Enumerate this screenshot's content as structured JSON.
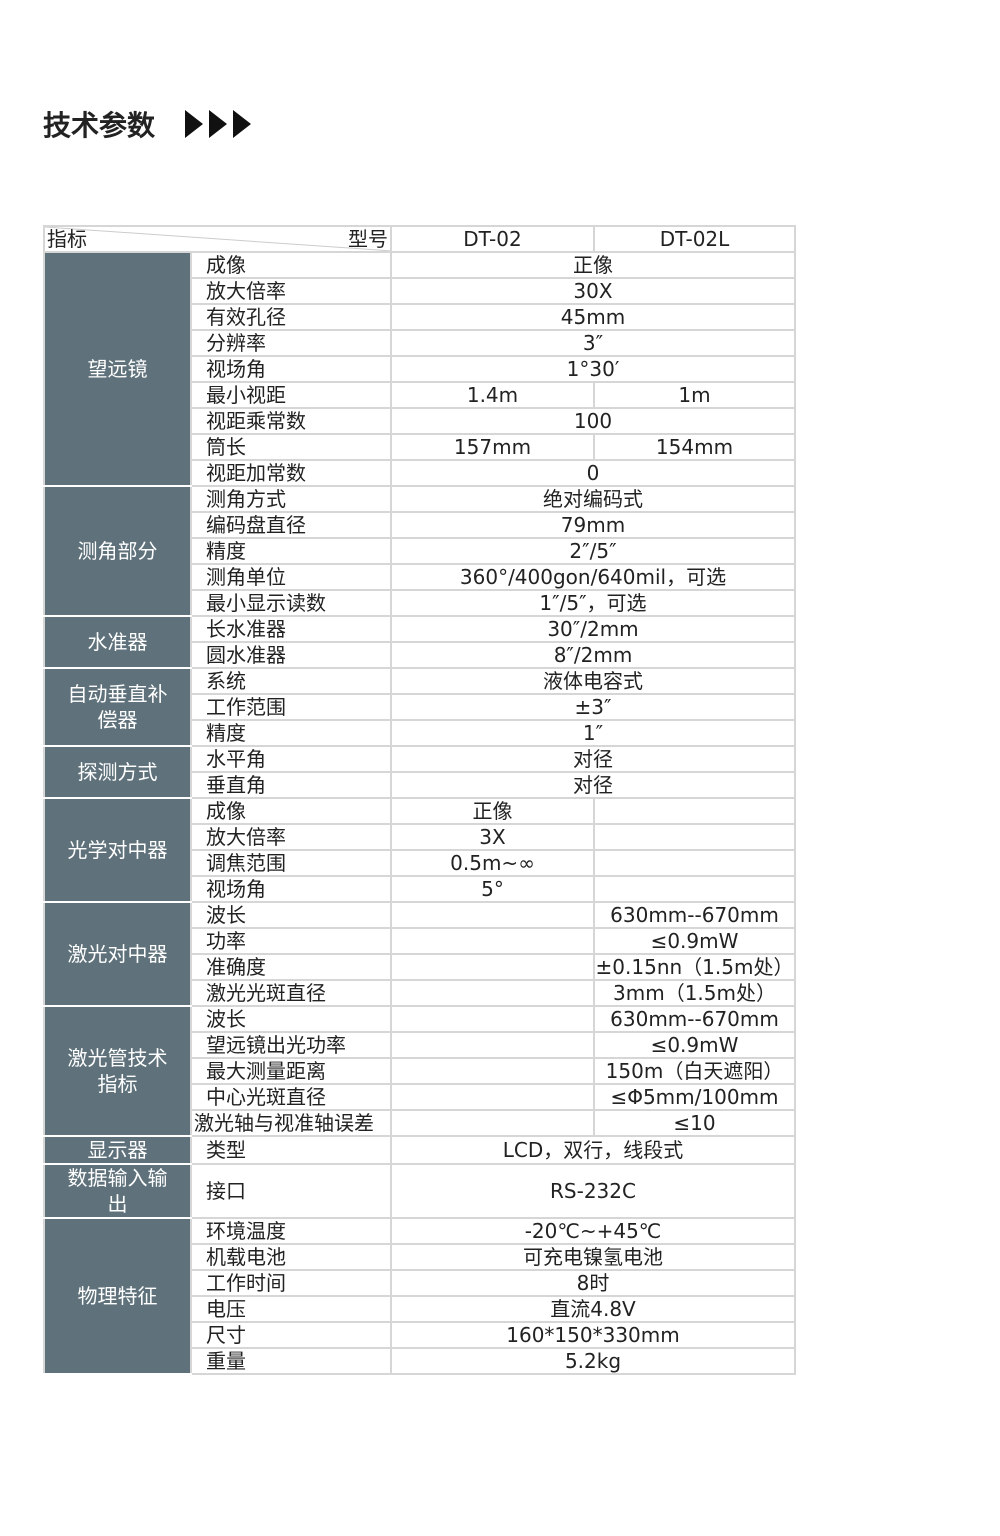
{
  "title": "技术参数",
  "header": {
    "indicator": "指标",
    "model": "型号",
    "models": [
      "DT-02",
      "DT-02L"
    ]
  },
  "colors": {
    "category_bg": "#5f727b",
    "border": "#d6d6d6"
  },
  "groups": [
    {
      "name": "望远镜",
      "rows": [
        [
          "成像",
          "正像"
        ],
        [
          "放大倍率",
          "30X"
        ],
        [
          "有效孔径",
          "45mm"
        ],
        [
          "分辨率",
          "3″"
        ],
        [
          "视场角",
          "1°30′"
        ],
        [
          "最小视距",
          "1.4m",
          "1m"
        ],
        [
          "视距乘常数",
          "100"
        ],
        [
          "筒长",
          "157mm",
          "154mm"
        ],
        [
          "视距加常数",
          "0"
        ]
      ]
    },
    {
      "name": "测角部分",
      "rows": [
        [
          "测角方式",
          "绝对编码式"
        ],
        [
          "编码盘直径",
          "79mm"
        ],
        [
          "精度",
          "2″/5″"
        ],
        [
          "测角单位",
          "360°/400gon/640mil，可选"
        ],
        [
          "最小显示读数",
          "1″/5″，可选"
        ]
      ]
    },
    {
      "name": "水准器",
      "rows": [
        [
          "长水准器",
          "30″/2mm"
        ],
        [
          "圆水准器",
          "8″/2mm"
        ]
      ]
    },
    {
      "name": "自动垂直补偿器",
      "rows": [
        [
          "系统",
          "液体电容式"
        ],
        [
          "工作范围",
          "±3″"
        ],
        [
          "精度",
          "1″"
        ]
      ]
    },
    {
      "name": "探测方式",
      "rows": [
        [
          "水平角",
          "对径"
        ],
        [
          "垂直角",
          "对径"
        ]
      ]
    },
    {
      "name": "光学对中器",
      "rows": [
        [
          "成像",
          "正像",
          ""
        ],
        [
          "放大倍率",
          "3X",
          ""
        ],
        [
          "调焦范围",
          "0.5m~∞",
          ""
        ],
        [
          "视场角",
          "5°",
          ""
        ]
      ]
    },
    {
      "name": "激光对中器",
      "rows": [
        [
          "波长",
          "",
          "630mm--670mm"
        ],
        [
          "功率",
          "",
          "≤0.9mW"
        ],
        [
          "准确度",
          "",
          "±0.15nn（1.5m处）"
        ],
        [
          "激光光斑直径",
          "",
          "3mm（1.5m处）"
        ]
      ]
    },
    {
      "name": "激光管技术指标",
      "rows": [
        [
          "波长",
          "",
          "630mm--670mm"
        ],
        [
          "望远镜出光功率",
          "",
          "≤0.9mW"
        ],
        [
          "最大测量距离",
          "",
          "150m（白天遮阳）"
        ],
        [
          "中心光斑直径",
          "",
          "≤Φ5mm/100mm"
        ],
        [
          "激光轴与视准轴误差",
          "",
          "≤10"
        ]
      ]
    },
    {
      "name": "显示器",
      "rows": [
        [
          "类型",
          "LCD，双行，线段式"
        ]
      ]
    },
    {
      "name": "数据输入输出",
      "rows": [
        [
          "接口",
          "RS-232C"
        ]
      ]
    },
    {
      "name": "物理特征",
      "rows": [
        [
          "环境温度",
          "-20℃~+45℃"
        ],
        [
          "机载电池",
          "可充电镍氢电池"
        ],
        [
          "工作时间",
          "8时"
        ],
        [
          "电压",
          "直流4.8V"
        ],
        [
          "尺寸",
          "160*150*330mm"
        ],
        [
          "重量",
          "5.2kg"
        ]
      ]
    }
  ]
}
